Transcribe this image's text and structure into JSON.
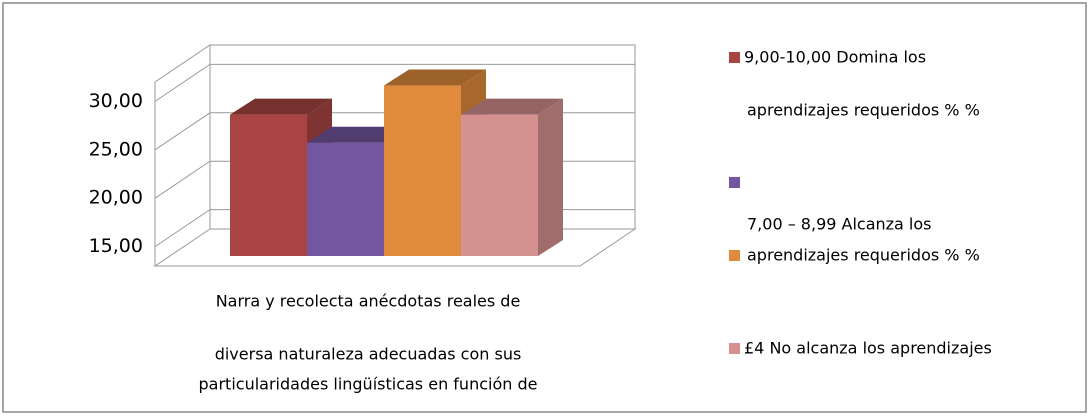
{
  "chart_data": {
    "type": "bar3d",
    "categories": [
      [
        "Narra y recolecta anécdotas reales de",
        "diversa naturaleza adecuadas con sus",
        "particularidades lingüísticas en función de"
      ]
    ],
    "series": [
      {
        "name": [
          "9,00-10,00 Domina los",
          "aprendizajes requeridos % %"
        ],
        "color": "#a94442",
        "values": [
          27.6
        ]
      },
      {
        "name": null,
        "color": "#7356a0",
        "values": [
          24.7
        ]
      },
      {
        "name": [
          "7,00 – 8,99 Alcanza los",
          "aprendizajes requeridos % %"
        ],
        "color": "#e08a3c",
        "values": [
          30.6
        ]
      },
      {
        "name": [
          "£4 No alcanza los aprendizajes"
        ],
        "color": "#d59090",
        "values": [
          27.6
        ]
      }
    ],
    "ylim": [
      13,
      32
    ],
    "yticks": [
      {
        "value": 15,
        "label": "15,00"
      },
      {
        "value": 20,
        "label": "20,00"
      },
      {
        "value": 25,
        "label": "25,00"
      },
      {
        "value": 30,
        "label": "30,00"
      }
    ],
    "grid": true
  }
}
